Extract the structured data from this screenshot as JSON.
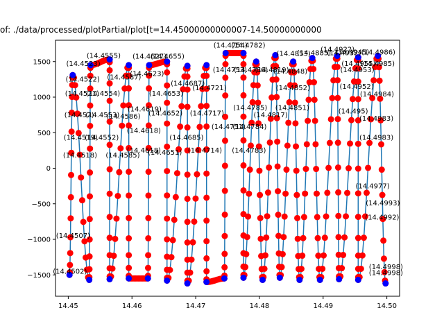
{
  "chart_data": {
    "type": "line",
    "title": "of: ./data/processed/plotPartial/plot[t=14.45000000000007-14.50000000000",
    "xlim": [
      14.448,
      14.502
    ],
    "ylim": [
      -1800,
      1800
    ],
    "x_ticks": [
      "14.45",
      "14.46",
      "14.47",
      "14.48",
      "14.49",
      "14.50"
    ],
    "x_tick_values": [
      14.45,
      14.46,
      14.47,
      14.48,
      14.49,
      14.5
    ],
    "y_ticks": [
      "1500",
      "1000",
      "500",
      "0",
      "−500",
      "−1000",
      "−1500"
    ],
    "y_tick_values": [
      1500,
      1000,
      500,
      0,
      -500,
      -1000,
      -1500
    ],
    "grid": false,
    "colors": {
      "line": "#1f77b4",
      "points": "#ff0000",
      "extrema": "#0000ff"
    },
    "peaks": [
      {
        "x": 14.4507,
        "y": 1310
      },
      {
        "x": 14.4535,
        "y": 1450
      },
      {
        "x": 14.4565,
        "y": 1530
      },
      {
        "x": 14.4595,
        "y": 1450
      },
      {
        "x": 14.4627,
        "y": 1450
      },
      {
        "x": 14.4655,
        "y": 1500
      },
      {
        "x": 14.4687,
        "y": 1440
      },
      {
        "x": 14.4717,
        "y": 1450
      },
      {
        "x": 14.4747,
        "y": 1620
      },
      {
        "x": 14.4775,
        "y": 1620
      },
      {
        "x": 14.4795,
        "y": 1500
      },
      {
        "x": 14.4825,
        "y": 1590
      },
      {
        "x": 14.4853,
        "y": 1500
      },
      {
        "x": 14.4883,
        "y": 1550
      },
      {
        "x": 14.4922,
        "y": 1580
      },
      {
        "x": 14.4955,
        "y": 1560
      },
      {
        "x": 14.4986,
        "y": 1580
      }
    ],
    "troughs": [
      {
        "x": 14.4502,
        "y": -1500
      },
      {
        "x": 14.4533,
        "y": -1570
      },
      {
        "x": 14.4565,
        "y": -1560
      },
      {
        "x": 14.4595,
        "y": -1550
      },
      {
        "x": 14.4625,
        "y": -1550
      },
      {
        "x": 14.4655,
        "y": -1580
      },
      {
        "x": 14.4687,
        "y": -1620
      },
      {
        "x": 14.4717,
        "y": -1600
      },
      {
        "x": 14.4745,
        "y": -1550
      },
      {
        "x": 14.4775,
        "y": -1540
      },
      {
        "x": 14.4805,
        "y": -1570
      },
      {
        "x": 14.4832,
        "y": -1540
      },
      {
        "x": 14.4863,
        "y": -1570
      },
      {
        "x": 14.4895,
        "y": -1570
      },
      {
        "x": 14.4925,
        "y": -1560
      },
      {
        "x": 14.4955,
        "y": -1570
      },
      {
        "x": 14.4998,
        "y": -1620
      }
    ],
    "annotations": [
      {
        "text": "(14.4986)",
        "x": 14.4986,
        "y": 1580
      },
      {
        "text": "(14.4985)",
        "x": 14.4985,
        "y": 1420
      },
      {
        "text": "(14.4984)",
        "x": 14.4984,
        "y": 990
      },
      {
        "text": "(14.4983)",
        "x": 14.4983,
        "y": 650
      },
      {
        "text": "(14.4983)",
        "x": 14.4983,
        "y": 380
      },
      {
        "text": "(14.4977)",
        "x": 14.4977,
        "y": -300
      },
      {
        "text": "(14.4993)",
        "x": 14.4993,
        "y": -540
      },
      {
        "text": "(14.4992)",
        "x": 14.4992,
        "y": -740
      },
      {
        "text": "(14.4998)",
        "x": 14.4998,
        "y": -1440
      },
      {
        "text": "(14.4998)",
        "x": 14.4998,
        "y": -1520
      },
      {
        "text": "(14.4955)",
        "x": 14.4955,
        "y": 1420
      },
      {
        "text": "(14.4952)",
        "x": 14.4952,
        "y": 1100
      },
      {
        "text": "(14.495)",
        "x": 14.495,
        "y": 750
      },
      {
        "text": "(14.4953)",
        "x": 14.4953,
        "y": 1330
      },
      {
        "text": "(14.4945)",
        "x": 14.4945,
        "y": 1580
      },
      {
        "text": "(14.4932)",
        "x": 14.4932,
        "y": 1570
      },
      {
        "text": "(14.4922)",
        "x": 14.4922,
        "y": 1620
      },
      {
        "text": "(14.4885)",
        "x": 14.4885,
        "y": 1570
      },
      {
        "text": "(14.4853)",
        "x": 14.4853,
        "y": 1560
      },
      {
        "text": "(14.4848)",
        "x": 14.4848,
        "y": 1310
      },
      {
        "text": "(14.4852)",
        "x": 14.4852,
        "y": 1080
      },
      {
        "text": "(14.4851)",
        "x": 14.4851,
        "y": 800
      },
      {
        "text": "(14.4817)",
        "x": 14.4817,
        "y": 700
      },
      {
        "text": "(14.4819)",
        "x": 14.4819,
        "y": 1330
      },
      {
        "text": "(14.4786)",
        "x": 14.4786,
        "y": 1330
      },
      {
        "text": "(14.4785)",
        "x": 14.4785,
        "y": 800
      },
      {
        "text": "(14.4784)",
        "x": 14.4784,
        "y": 530
      },
      {
        "text": "(14.4783)",
        "x": 14.4783,
        "y": 200
      },
      {
        "text": "(14.4782)",
        "x": 14.4782,
        "y": 1680
      },
      {
        "text": "(14.4754)",
        "x": 14.4754,
        "y": 1680
      },
      {
        "text": "(14.4753)",
        "x": 14.4753,
        "y": 1330
      },
      {
        "text": "(14.4751)",
        "x": 14.4751,
        "y": 530
      },
      {
        "text": "(14.4721)",
        "x": 14.4721,
        "y": 1080
      },
      {
        "text": "(14.4717)",
        "x": 14.4717,
        "y": 720
      },
      {
        "text": "(14.4714)",
        "x": 14.4714,
        "y": 200
      },
      {
        "text": "(14.4687)",
        "x": 14.4687,
        "y": 1140
      },
      {
        "text": "(14.4685)",
        "x": 14.4685,
        "y": 380
      },
      {
        "text": "(14.4655)",
        "x": 14.4655,
        "y": 1520
      },
      {
        "text": "(14.4653)",
        "x": 14.4653,
        "y": 1000
      },
      {
        "text": "(14.4652)",
        "x": 14.4652,
        "y": 720
      },
      {
        "text": "(14.4651)",
        "x": 14.4651,
        "y": 170
      },
      {
        "text": "(14.4627)",
        "x": 14.4627,
        "y": 1520
      },
      {
        "text": "(14.4623)",
        "x": 14.4623,
        "y": 1280
      },
      {
        "text": "(14.4619)",
        "x": 14.4619,
        "y": 780
      },
      {
        "text": "(14.4618)",
        "x": 14.4618,
        "y": 480
      },
      {
        "text": "(14.4618)",
        "x": 14.4618,
        "y": 200
      },
      {
        "text": "(14.4587)",
        "x": 14.4587,
        "y": 1230
      },
      {
        "text": "(14.4586)",
        "x": 14.4586,
        "y": 680
      },
      {
        "text": "(14.4585)",
        "x": 14.4585,
        "y": 130
      },
      {
        "text": "(14.4555)",
        "x": 14.4555,
        "y": 1530
      },
      {
        "text": "(14.4554)",
        "x": 14.4554,
        "y": 1000
      },
      {
        "text": "(14.4553)",
        "x": 14.4553,
        "y": 700
      },
      {
        "text": "(14.4552)",
        "x": 14.4552,
        "y": 380
      },
      {
        "text": "(14.4523)",
        "x": 14.4523,
        "y": 1420
      },
      {
        "text": "(14.4522)",
        "x": 14.4522,
        "y": 1200
      },
      {
        "text": "(14.4521)",
        "x": 14.4521,
        "y": 1000
      },
      {
        "text": "(14.452)",
        "x": 14.452,
        "y": 700
      },
      {
        "text": "(14.4519)",
        "x": 14.4519,
        "y": 380
      },
      {
        "text": "(14.4518)",
        "x": 14.4518,
        "y": 130
      },
      {
        "text": "(14.4507)",
        "x": 14.4507,
        "y": -1000
      },
      {
        "text": "(14.4502)",
        "x": 14.4502,
        "y": -1500
      }
    ]
  }
}
